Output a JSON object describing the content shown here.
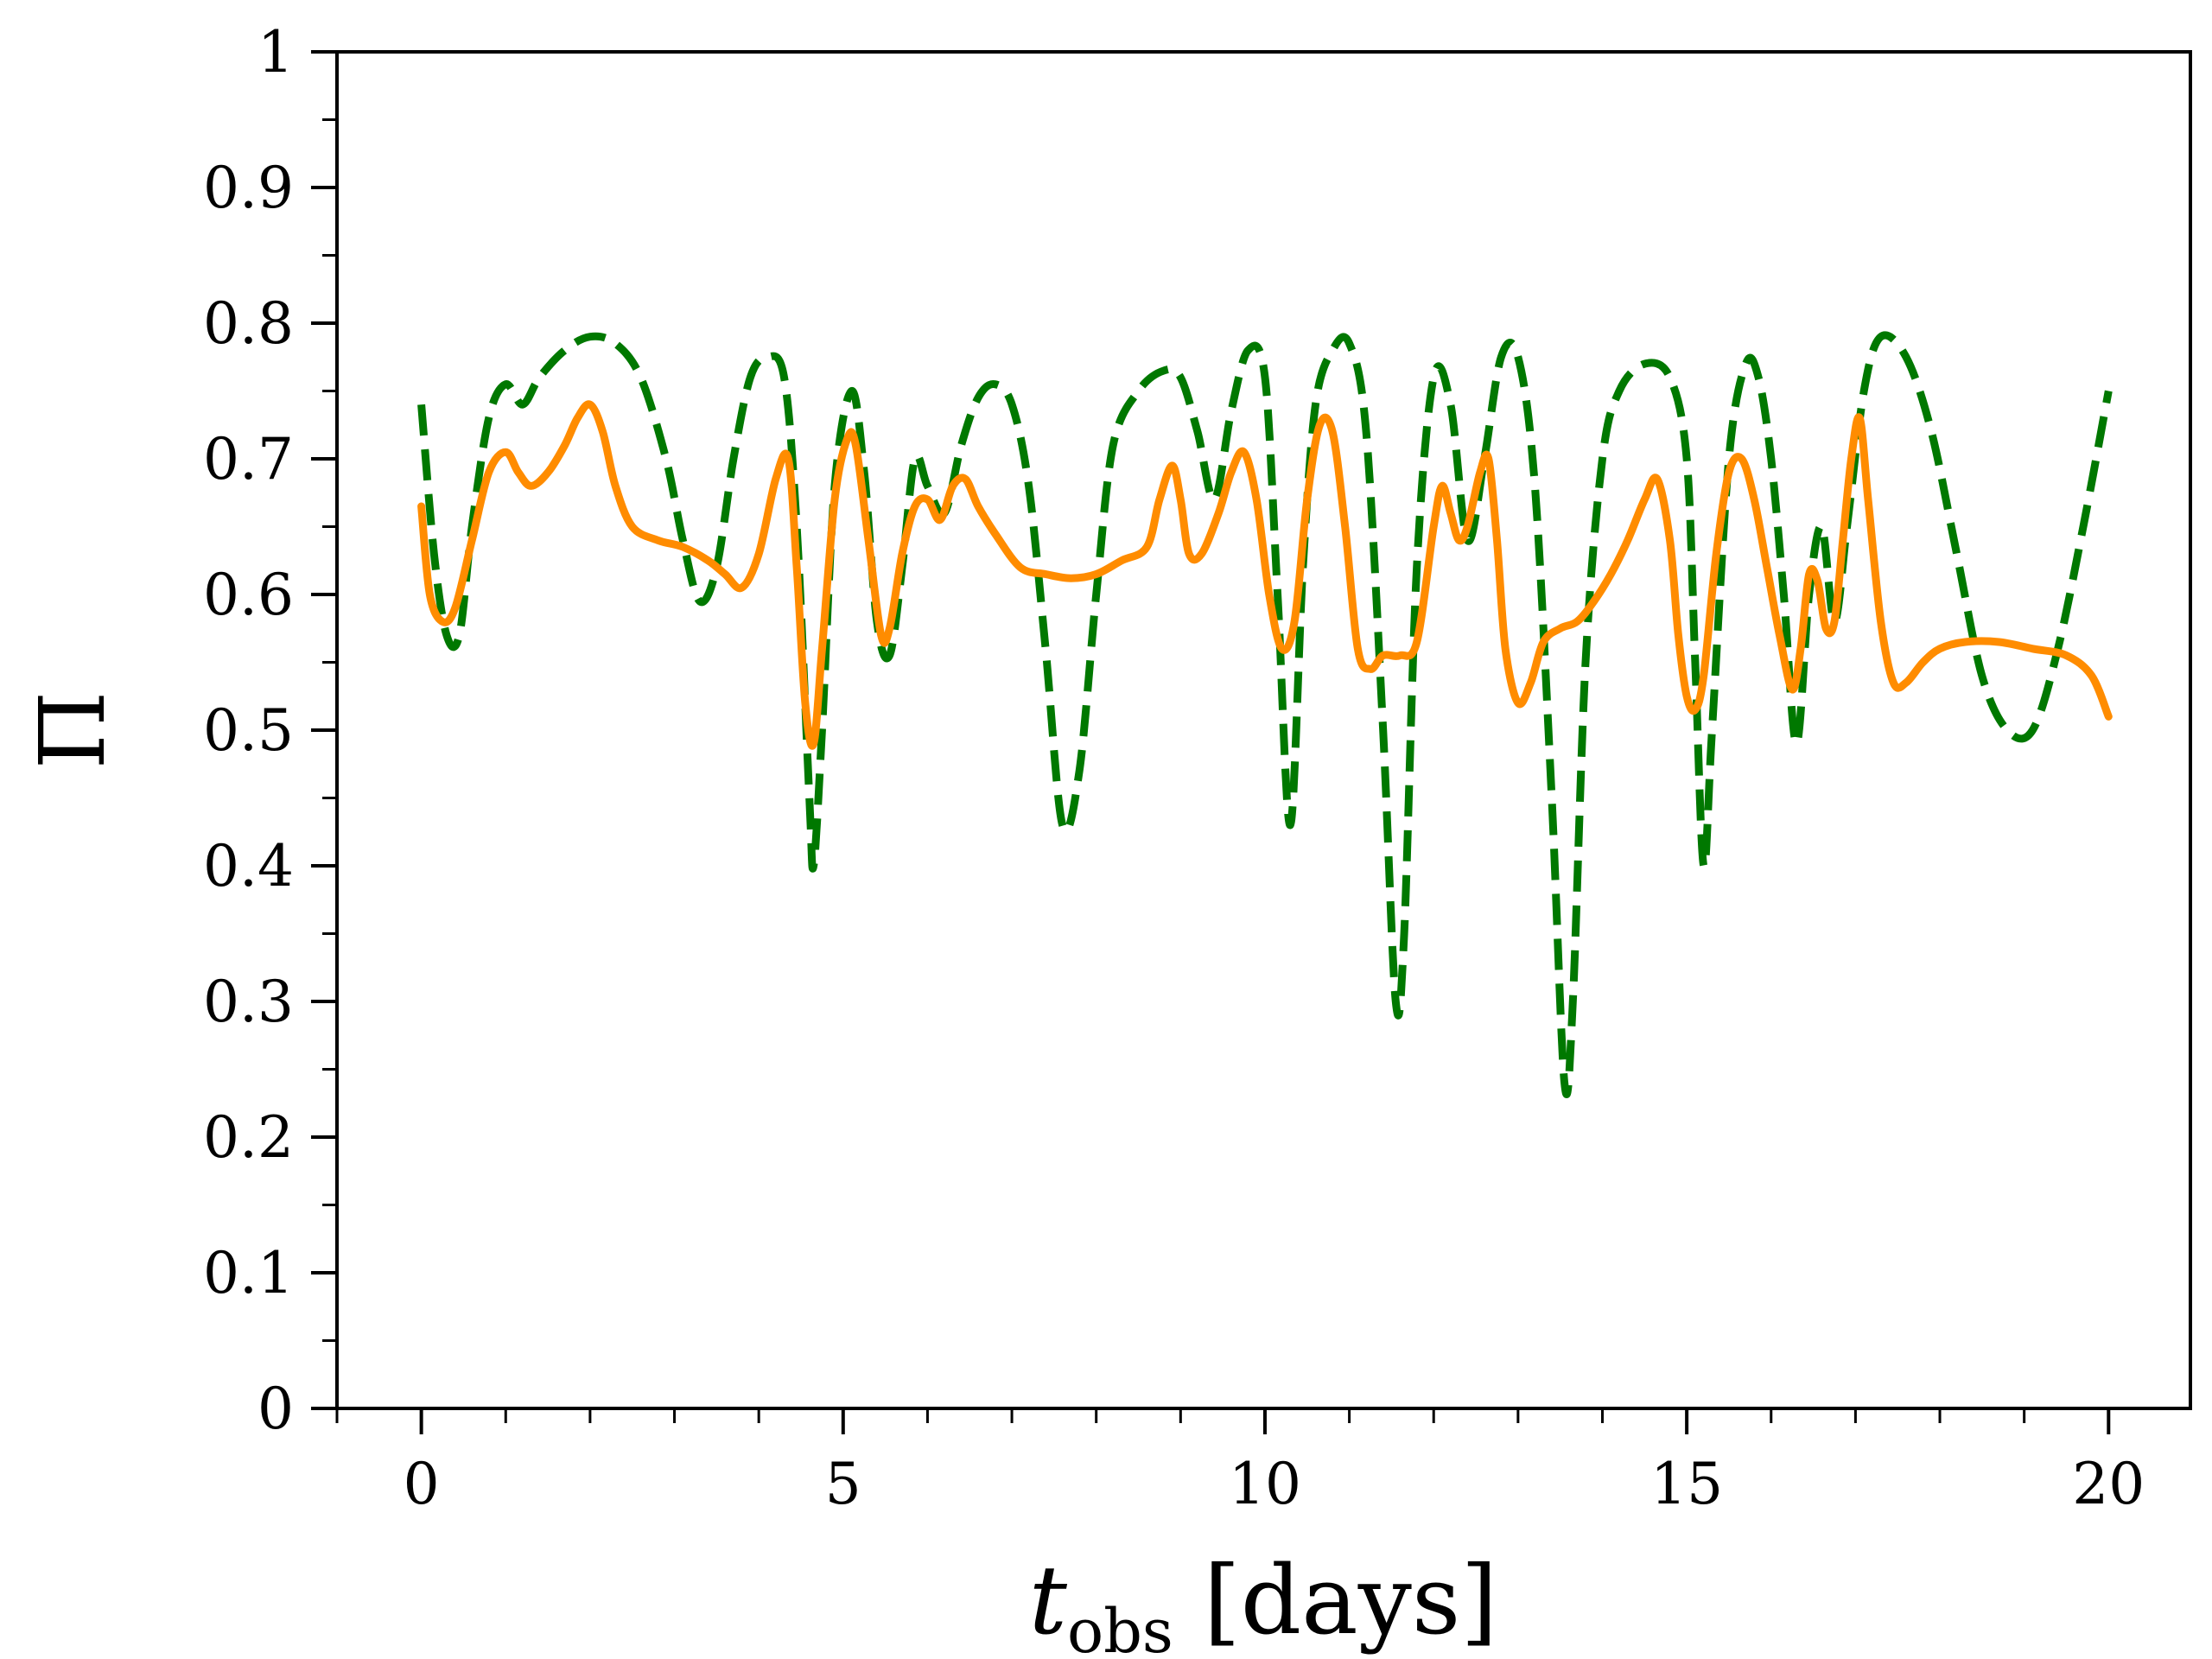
{
  "chart_data": {
    "type": "line",
    "title": "",
    "xlabel": {
      "main": "t",
      "sub": "obs",
      "rest": " [days]"
    },
    "ylabel": "Π",
    "xlim": [
      -1,
      20.97
    ],
    "ylim": [
      0,
      1
    ],
    "xticks": [
      0,
      5,
      10,
      15,
      20
    ],
    "xtick_labels": [
      "0",
      "5",
      "10",
      "15",
      "20"
    ],
    "x_minor_step": 1,
    "yticks": [
      0,
      0.1,
      0.2,
      0.3,
      0.4,
      0.5,
      0.6,
      0.7,
      0.8,
      0.9,
      1
    ],
    "ytick_labels": [
      "0",
      "0.1",
      "0.2",
      "0.3",
      "0.4",
      "0.5",
      "0.6",
      "0.7",
      "0.8",
      "0.9",
      "1"
    ],
    "y_minor_step": 0.05,
    "grid": false,
    "legend": "none",
    "series": [
      {
        "name": "dashed-green",
        "color": "#007800",
        "style": "dashed",
        "x": [
          0,
          0.15,
          0.3,
          0.45,
          0.6,
          0.8,
          1.0,
          1.2,
          1.4,
          1.7,
          2.0,
          2.3,
          2.6,
          2.9,
          3.1,
          3.3,
          3.5,
          3.7,
          3.9,
          4.1,
          4.3,
          4.45,
          4.6,
          4.65,
          4.75,
          4.9,
          5.1,
          5.25,
          5.4,
          5.55,
          5.7,
          5.85,
          6.0,
          6.2,
          6.4,
          6.6,
          6.8,
          7.0,
          7.2,
          7.4,
          7.6,
          7.8,
          8.0,
          8.2,
          8.5,
          8.8,
          9.0,
          9.2,
          9.4,
          9.6,
          9.8,
          10.0,
          10.15,
          10.3,
          10.45,
          10.6,
          10.8,
          11.0,
          11.2,
          11.4,
          11.55,
          11.65,
          11.8,
          12.0,
          12.2,
          12.4,
          12.6,
          12.8,
          13.0,
          13.2,
          13.4,
          13.55,
          13.65,
          13.8,
          14.0,
          14.2,
          14.5,
          14.8,
          15.0,
          15.1,
          15.2,
          15.3,
          15.5,
          15.7,
          15.85,
          16.0,
          16.15,
          16.3,
          16.45,
          16.6,
          16.75,
          16.9,
          17.1,
          17.3,
          17.6,
          17.9,
          18.2,
          18.5,
          18.8,
          19.1,
          19.4,
          19.7,
          20.0
        ],
        "y": [
          0.74,
          0.63,
          0.57,
          0.57,
          0.65,
          0.73,
          0.755,
          0.74,
          0.76,
          0.78,
          0.79,
          0.785,
          0.76,
          0.7,
          0.64,
          0.595,
          0.62,
          0.7,
          0.76,
          0.775,
          0.76,
          0.65,
          0.45,
          0.4,
          0.5,
          0.68,
          0.75,
          0.69,
          0.58,
          0.555,
          0.62,
          0.7,
          0.68,
          0.66,
          0.71,
          0.745,
          0.755,
          0.74,
          0.68,
          0.56,
          0.43,
          0.47,
          0.6,
          0.71,
          0.75,
          0.765,
          0.76,
          0.72,
          0.67,
          0.735,
          0.78,
          0.76,
          0.6,
          0.43,
          0.62,
          0.74,
          0.78,
          0.785,
          0.72,
          0.5,
          0.3,
          0.35,
          0.62,
          0.76,
          0.74,
          0.64,
          0.7,
          0.775,
          0.775,
          0.68,
          0.45,
          0.24,
          0.3,
          0.55,
          0.7,
          0.75,
          0.77,
          0.76,
          0.7,
          0.55,
          0.4,
          0.5,
          0.7,
          0.77,
          0.76,
          0.7,
          0.6,
          0.49,
          0.6,
          0.65,
          0.58,
          0.65,
          0.75,
          0.79,
          0.775,
          0.72,
          0.63,
          0.54,
          0.5,
          0.5,
          0.56,
          0.65,
          0.75
        ]
      },
      {
        "name": "solid-orange",
        "color": "#ff8c00",
        "style": "solid",
        "x": [
          0,
          0.1,
          0.25,
          0.4,
          0.6,
          0.8,
          1.0,
          1.15,
          1.3,
          1.5,
          1.7,
          1.85,
          2.0,
          2.15,
          2.3,
          2.5,
          2.8,
          3.1,
          3.4,
          3.6,
          3.8,
          4.0,
          4.2,
          4.35,
          4.45,
          4.55,
          4.65,
          4.75,
          4.9,
          5.05,
          5.15,
          5.3,
          5.45,
          5.55,
          5.7,
          5.85,
          6.0,
          6.15,
          6.3,
          6.45,
          6.6,
          6.8,
          7.1,
          7.4,
          7.7,
          8.0,
          8.3,
          8.6,
          8.75,
          8.9,
          9.0,
          9.1,
          9.25,
          9.45,
          9.6,
          9.75,
          9.9,
          10.05,
          10.2,
          10.35,
          10.5,
          10.65,
          10.8,
          10.95,
          11.1,
          11.25,
          11.4,
          11.6,
          11.8,
          12.0,
          12.1,
          12.2,
          12.3,
          12.4,
          12.55,
          12.65,
          12.75,
          12.85,
          13.0,
          13.15,
          13.3,
          13.5,
          13.7,
          13.9,
          14.1,
          14.3,
          14.5,
          14.65,
          14.8,
          14.9,
          15.0,
          15.1,
          15.2,
          15.35,
          15.5,
          15.65,
          15.8,
          15.95,
          16.1,
          16.25,
          16.35,
          16.45,
          16.55,
          16.65,
          16.75,
          16.85,
          16.95,
          17.05,
          17.15,
          17.3,
          17.45,
          17.6,
          17.8,
          18.0,
          18.3,
          18.7,
          19.1,
          19.5,
          19.8,
          20.0
        ],
        "y": [
          0.665,
          0.6,
          0.58,
          0.59,
          0.64,
          0.69,
          0.705,
          0.69,
          0.68,
          0.69,
          0.71,
          0.73,
          0.74,
          0.72,
          0.68,
          0.65,
          0.64,
          0.635,
          0.625,
          0.615,
          0.605,
          0.63,
          0.685,
          0.7,
          0.62,
          0.52,
          0.49,
          0.56,
          0.67,
          0.715,
          0.71,
          0.64,
          0.57,
          0.575,
          0.63,
          0.665,
          0.67,
          0.655,
          0.68,
          0.685,
          0.665,
          0.645,
          0.62,
          0.615,
          0.612,
          0.615,
          0.625,
          0.635,
          0.67,
          0.695,
          0.67,
          0.63,
          0.63,
          0.66,
          0.69,
          0.705,
          0.67,
          0.6,
          0.56,
          0.58,
          0.67,
          0.725,
          0.72,
          0.65,
          0.56,
          0.545,
          0.555,
          0.555,
          0.565,
          0.65,
          0.68,
          0.66,
          0.64,
          0.65,
          0.69,
          0.7,
          0.64,
          0.56,
          0.52,
          0.535,
          0.565,
          0.575,
          0.58,
          0.595,
          0.615,
          0.64,
          0.67,
          0.685,
          0.64,
          0.57,
          0.525,
          0.515,
          0.54,
          0.63,
          0.69,
          0.7,
          0.67,
          0.62,
          0.57,
          0.53,
          0.56,
          0.615,
          0.61,
          0.575,
          0.58,
          0.64,
          0.7,
          0.73,
          0.67,
          0.58,
          0.535,
          0.535,
          0.55,
          0.56,
          0.565,
          0.565,
          0.56,
          0.555,
          0.54,
          0.51
        ]
      }
    ]
  }
}
